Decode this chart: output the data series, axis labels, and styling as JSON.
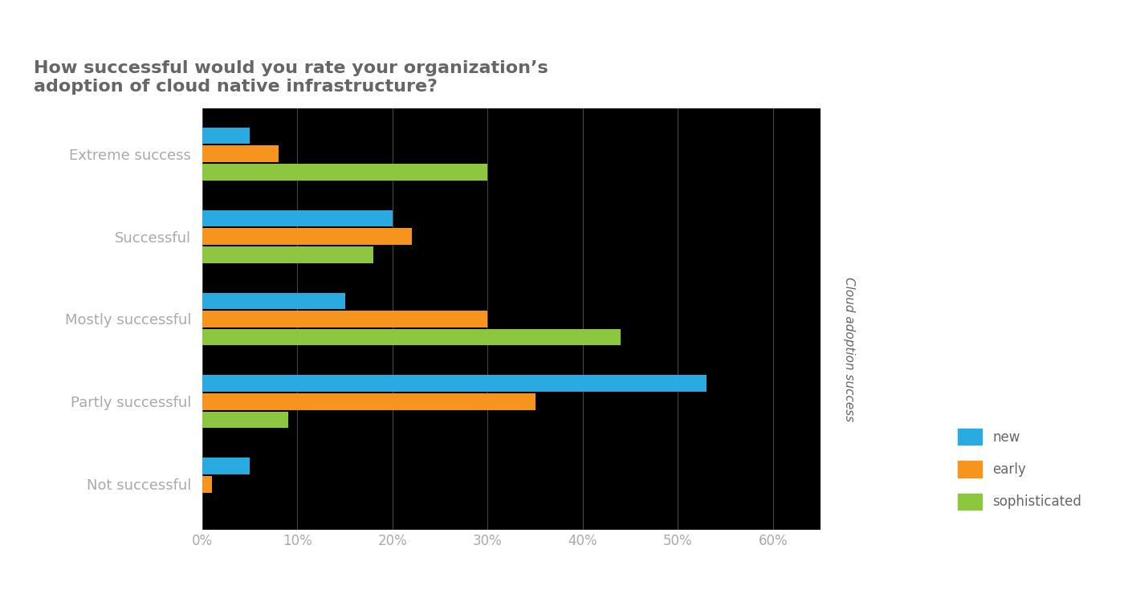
{
  "title": "How successful would you rate your organization’s\nadoption of cloud native infrastructure?",
  "title_fontsize": 16,
  "ylabel_rotated": "Cloud adoption success",
  "categories": [
    "Not successful",
    "Partly successful",
    "Mostly successful",
    "Successful",
    "Extreme success"
  ],
  "series": {
    "new": [
      5,
      53,
      15,
      20,
      5
    ],
    "early": [
      1,
      35,
      30,
      22,
      8
    ],
    "sophisticated": [
      0,
      9,
      44,
      18,
      30
    ]
  },
  "colors": {
    "new": "#29ABE2",
    "early": "#F7941D",
    "sophisticated": "#8DC63F"
  },
  "bar_height": 0.22,
  "xlim": [
    0,
    65
  ],
  "xticks": [
    0,
    10,
    20,
    30,
    40,
    50,
    60
  ],
  "xtick_labels": [
    "0%",
    "10%",
    "20%",
    "30%",
    "40%",
    "50%",
    "60%"
  ],
  "figure_bg": "#ffffff",
  "axes_bg": "#000000",
  "text_color": "#666666",
  "axes_text_color": "#aaaaaa",
  "grid_color": "#444444",
  "legend_fontsize": 12,
  "tick_fontsize": 12,
  "category_fontsize": 13
}
